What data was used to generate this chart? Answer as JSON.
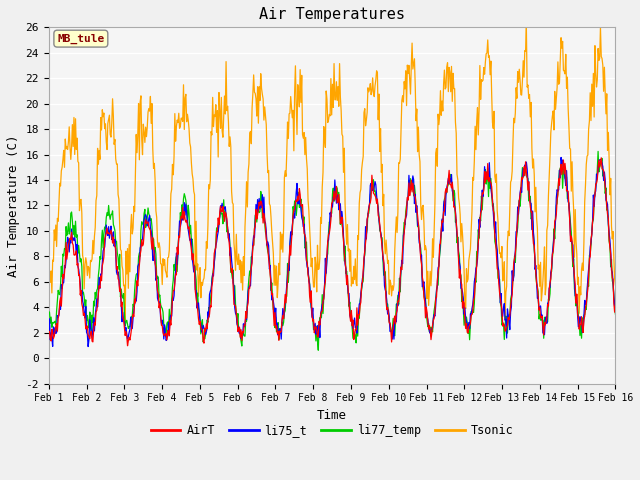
{
  "title": "Air Temperatures",
  "xlabel": "Time",
  "ylabel": "Air Temperature (C)",
  "ylim": [
    -2,
    26
  ],
  "yticks": [
    -2,
    0,
    2,
    4,
    6,
    8,
    10,
    12,
    14,
    16,
    18,
    20,
    22,
    24,
    26
  ],
  "xtick_labels": [
    "Feb 1",
    "Feb 2",
    "Feb 3",
    "Feb 4",
    "Feb 5",
    "Feb 6",
    "Feb 7",
    "Feb 8",
    "Feb 9",
    "Feb 10",
    "Feb 11",
    "Feb 12",
    "Feb 13",
    "Feb 14",
    "Feb 15",
    "Feb 16"
  ],
  "series_colors": {
    "AirT": "#ff0000",
    "li75_t": "#0000ff",
    "li77_temp": "#00cc00",
    "Tsonic": "#ffa500"
  },
  "legend_label": "MB_tule",
  "legend_box_color": "#ffffcc",
  "legend_text_color": "#880000",
  "bg_color": "#e8e8e8",
  "plot_bg_color": "#f5f5f5",
  "grid_color": "#ffffff",
  "n_points": 720,
  "days": 15
}
